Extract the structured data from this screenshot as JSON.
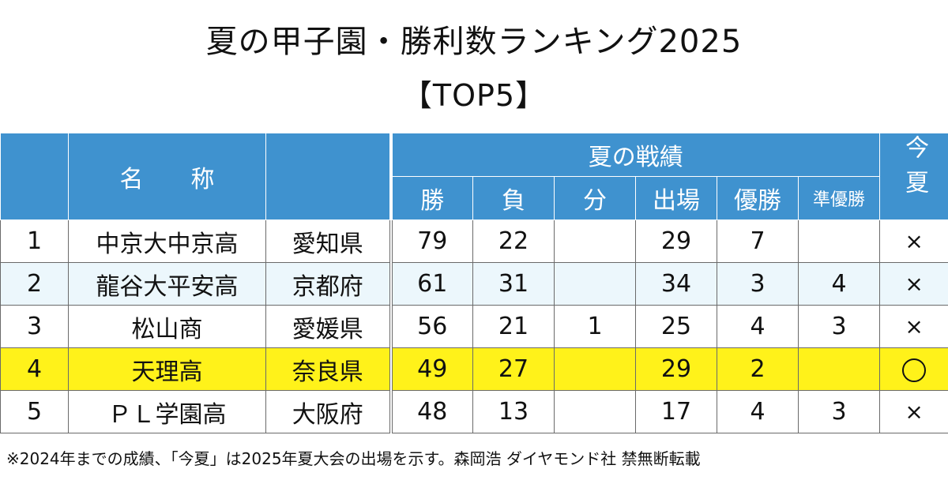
{
  "title": "夏の甲子園・勝利数ランキング2025",
  "subtitle": "【TOP5】",
  "header": {
    "name": "名称",
    "summer_record": "夏の戦績",
    "this_summer": "今夏",
    "cols": [
      "勝",
      "負",
      "分",
      "出場",
      "優勝",
      "準優勝"
    ]
  },
  "rows": [
    {
      "rank": "1",
      "school": "中京大中京高",
      "pref": "愛知県",
      "win": "79",
      "loss": "22",
      "draw": "",
      "appear": "29",
      "champ": "7",
      "runner": "",
      "this_summer": "×"
    },
    {
      "rank": "2",
      "school": "龍谷大平安高",
      "pref": "京都府",
      "win": "61",
      "loss": "31",
      "draw": "",
      "appear": "34",
      "champ": "3",
      "runner": "4",
      "this_summer": "×"
    },
    {
      "rank": "3",
      "school": "松山商",
      "pref": "愛媛県",
      "win": "56",
      "loss": "21",
      "draw": "1",
      "appear": "25",
      "champ": "4",
      "runner": "3",
      "this_summer": "×"
    },
    {
      "rank": "4",
      "school": "天理高",
      "pref": "奈良県",
      "win": "49",
      "loss": "27",
      "draw": "",
      "appear": "29",
      "champ": "2",
      "runner": "",
      "this_summer": "○"
    },
    {
      "rank": "5",
      "school": "ＰＬ学園高",
      "pref": "大阪府",
      "win": "48",
      "loss": "13",
      "draw": "",
      "appear": "17",
      "champ": "4",
      "runner": "3",
      "this_summer": "×"
    }
  ],
  "colors": {
    "header_bg": "#3f92cf",
    "highlight": "#fff21a",
    "stripe": "#ecf7fc"
  },
  "footnote": "※2024年までの成績、「今夏」は2025年夏大会の出場を示す。森岡浩 ダイヤモンド社 禁無断転載"
}
